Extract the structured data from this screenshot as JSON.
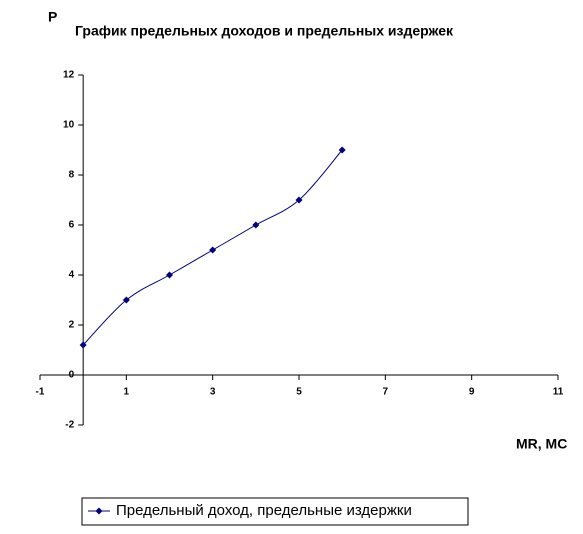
{
  "chart_data": {
    "type": "line",
    "title": "График предельных доходов и предельных издержек",
    "y_label": "P",
    "x_label": "MR, MC",
    "x": [
      0,
      1,
      2,
      3,
      4,
      5,
      6
    ],
    "series": [
      {
        "name": "Предельный доход, предельные издержки",
        "color": "#000080",
        "values": [
          1.2,
          3,
          4,
          5,
          6,
          7,
          9
        ]
      }
    ],
    "xlim": [
      -1,
      11
    ],
    "xticks": [
      -1,
      1,
      3,
      5,
      7,
      9,
      11
    ],
    "ylim": [
      -2,
      12
    ],
    "yticks": [
      -2,
      0,
      2,
      4,
      6,
      8,
      10,
      12
    ],
    "smooth": true
  }
}
